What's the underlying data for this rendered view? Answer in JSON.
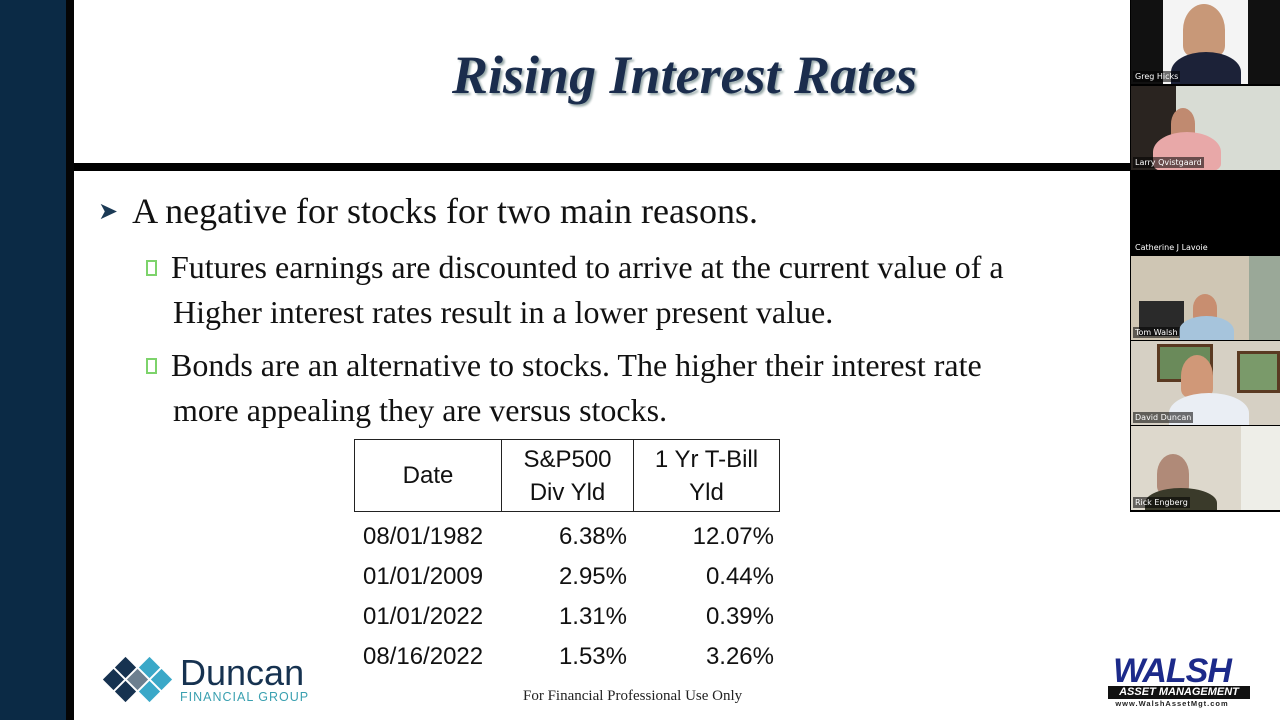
{
  "slide": {
    "title": "Rising Interest Rates",
    "bullet_main": "A negative for stocks for two main reasons.",
    "sub_bullets": [
      {
        "line1": "Futures earnings are discounted to arrive at the current value of a",
        "line2": "Higher interest rates result in a lower present value."
      },
      {
        "line1": "Bonds are an alternative to stocks.  The higher their interest rate",
        "line2": "more appealing they are versus stocks."
      }
    ],
    "table": {
      "headers": [
        "Date",
        "S&P500\nDiv Yld",
        "1 Yr T-Bill\nYld"
      ],
      "header_lines": [
        [
          "Date"
        ],
        [
          "S&P500",
          "Div Yld"
        ],
        [
          "1 Yr T-Bill",
          "Yld"
        ]
      ],
      "rows": [
        [
          "08/01/1982",
          "6.38%",
          "12.07%"
        ],
        [
          "01/01/2009",
          "2.95%",
          "0.44%"
        ],
        [
          "01/01/2022",
          "1.31%",
          "0.39%"
        ],
        [
          "08/16/2022",
          "1.53%",
          "3.26%"
        ]
      ]
    },
    "footer": "For Financial Professional Use Only",
    "logo_left": {
      "name": "Duncan",
      "sub": "FINANCIAL GROUP"
    },
    "logo_right": {
      "name": "WALSH",
      "sub": "ASSET MANAGEMENT",
      "url": "www.WalshAssetMgt.com"
    }
  },
  "participants": [
    {
      "name": "Greg Hicks"
    },
    {
      "name": "Larry Qvistgaard"
    },
    {
      "name": "Catherine J Lavoie"
    },
    {
      "name": "Tom Walsh"
    },
    {
      "name": "David Duncan"
    },
    {
      "name": "Rick Engberg"
    }
  ],
  "colors": {
    "accent": "#1b2d4d",
    "bullet_green": "#7dd36b",
    "left_panel": "#0b2a45"
  }
}
